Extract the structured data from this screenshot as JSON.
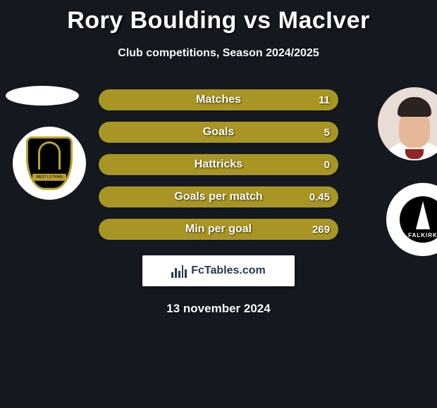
{
  "title": "Rory Boulding vs MacIver",
  "subtitle": "Club competitions, Season 2024/2025",
  "date": "13 november 2024",
  "brand": "FcTables.com",
  "colors": {
    "background": "#14181f",
    "bar_fill": "#a99523",
    "bar_track": "#5b5011",
    "text": "#ffffff",
    "brand_bg": "#ffffff",
    "brand_text": "#2a3a4a"
  },
  "stats": [
    {
      "label": "Matches",
      "left_value": "",
      "right_value": "11",
      "fill_pct": 100
    },
    {
      "label": "Goals",
      "left_value": "",
      "right_value": "5",
      "fill_pct": 100
    },
    {
      "label": "Hattricks",
      "left_value": "",
      "right_value": "0",
      "fill_pct": 100
    },
    {
      "label": "Goals per match",
      "left_value": "",
      "right_value": "0.45",
      "fill_pct": 100
    },
    {
      "label": "Min per goal",
      "left_value": "",
      "right_value": "269",
      "fill_pct": 100
    }
  ],
  "left_side": {
    "top_shape": "ellipse",
    "emblem_text": "WEST LOTHIAN"
  },
  "right_side": {
    "avatar": "player-photo",
    "emblem_text": "FALKIRK"
  }
}
